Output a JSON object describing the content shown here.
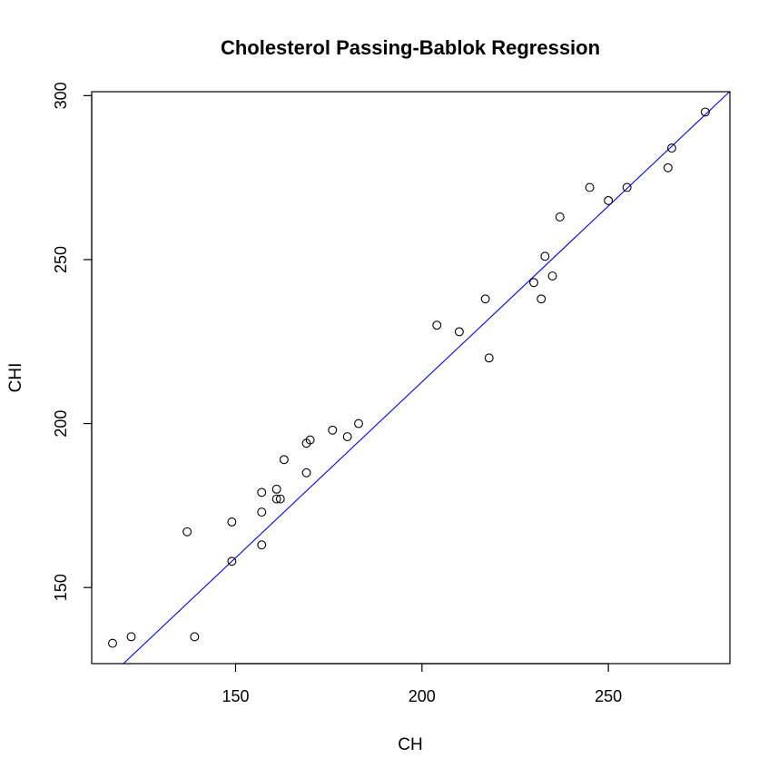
{
  "chart_data": {
    "type": "scatter",
    "title": "Cholesterol Passing-Bablok Regression",
    "xlabel": "CH",
    "ylabel": "CHI",
    "xlim": [
      111.4,
      282.6
    ],
    "ylim": [
      126.8,
      301.2
    ],
    "x_ticks": [
      150,
      200,
      250
    ],
    "y_ticks": [
      150,
      200,
      250,
      300
    ],
    "grid": false,
    "legend": "none",
    "points": [
      {
        "x": 117,
        "y": 133
      },
      {
        "x": 122,
        "y": 135
      },
      {
        "x": 137,
        "y": 167
      },
      {
        "x": 139,
        "y": 135
      },
      {
        "x": 149,
        "y": 158
      },
      {
        "x": 149,
        "y": 170
      },
      {
        "x": 157,
        "y": 163
      },
      {
        "x": 157,
        "y": 173
      },
      {
        "x": 157,
        "y": 179
      },
      {
        "x": 161,
        "y": 177
      },
      {
        "x": 161,
        "y": 180
      },
      {
        "x": 162,
        "y": 177
      },
      {
        "x": 163,
        "y": 189
      },
      {
        "x": 169,
        "y": 185
      },
      {
        "x": 169,
        "y": 194
      },
      {
        "x": 170,
        "y": 195
      },
      {
        "x": 176,
        "y": 198
      },
      {
        "x": 180,
        "y": 196
      },
      {
        "x": 183,
        "y": 200
      },
      {
        "x": 204,
        "y": 230
      },
      {
        "x": 210,
        "y": 228
      },
      {
        "x": 217,
        "y": 238
      },
      {
        "x": 218,
        "y": 220
      },
      {
        "x": 230,
        "y": 243
      },
      {
        "x": 232,
        "y": 238
      },
      {
        "x": 233,
        "y": 251
      },
      {
        "x": 235,
        "y": 245
      },
      {
        "x": 237,
        "y": 263
      },
      {
        "x": 245,
        "y": 272
      },
      {
        "x": 250,
        "y": 268
      },
      {
        "x": 255,
        "y": 272
      },
      {
        "x": 266,
        "y": 278
      },
      {
        "x": 267,
        "y": 284
      },
      {
        "x": 276,
        "y": 295
      }
    ],
    "regression_line": {
      "intercept": -1.8,
      "slope": 1.0725
    },
    "point_color": "#000000",
    "line_color": "#0000ff"
  }
}
